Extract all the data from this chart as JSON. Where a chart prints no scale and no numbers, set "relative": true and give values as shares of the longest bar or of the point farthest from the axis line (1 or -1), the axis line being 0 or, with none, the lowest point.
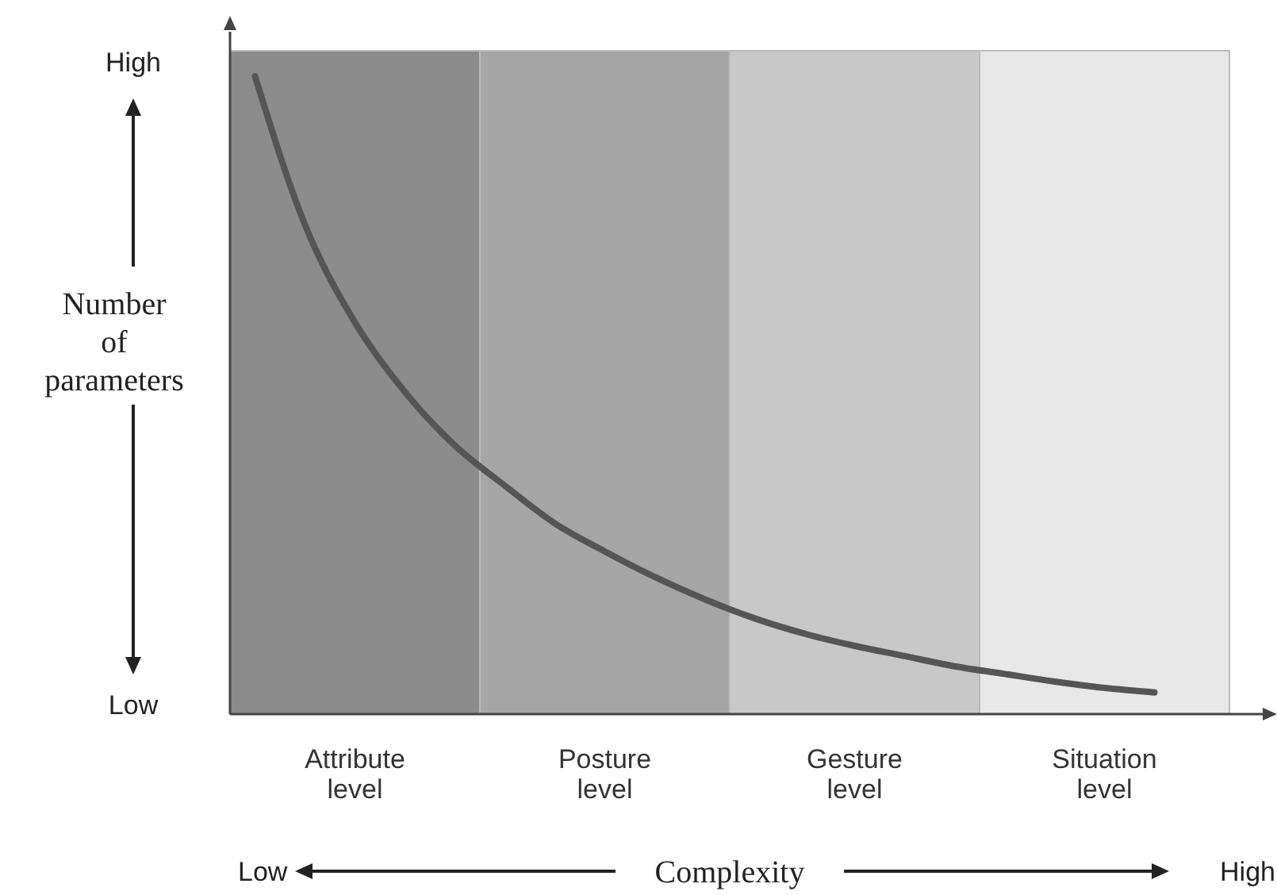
{
  "chart_data": {
    "type": "line",
    "relative": true,
    "xlabel": "Complexity",
    "ylabel": "Number of parameters",
    "categories": [
      null,
      null,
      "Attribute level",
      null,
      null,
      null,
      null,
      "Posture level",
      null,
      null,
      null,
      null,
      "Gesture level",
      null,
      null,
      null,
      null,
      "Situation level",
      null,
      null
    ],
    "series": [
      {
        "color": "#555555",
        "values": [
          1,
          0.767,
          0.614,
          0.505,
          0.421,
          0.358,
          0.299,
          0.255,
          0.215,
          0.18,
          0.15,
          0.126,
          0.107,
          0.091,
          0.075,
          0.063,
          0.051,
          0.041,
          0.034,
          null
        ]
      }
    ],
    "annotations": [
      "High",
      "Low",
      "Low",
      "High"
    ]
  }
}
